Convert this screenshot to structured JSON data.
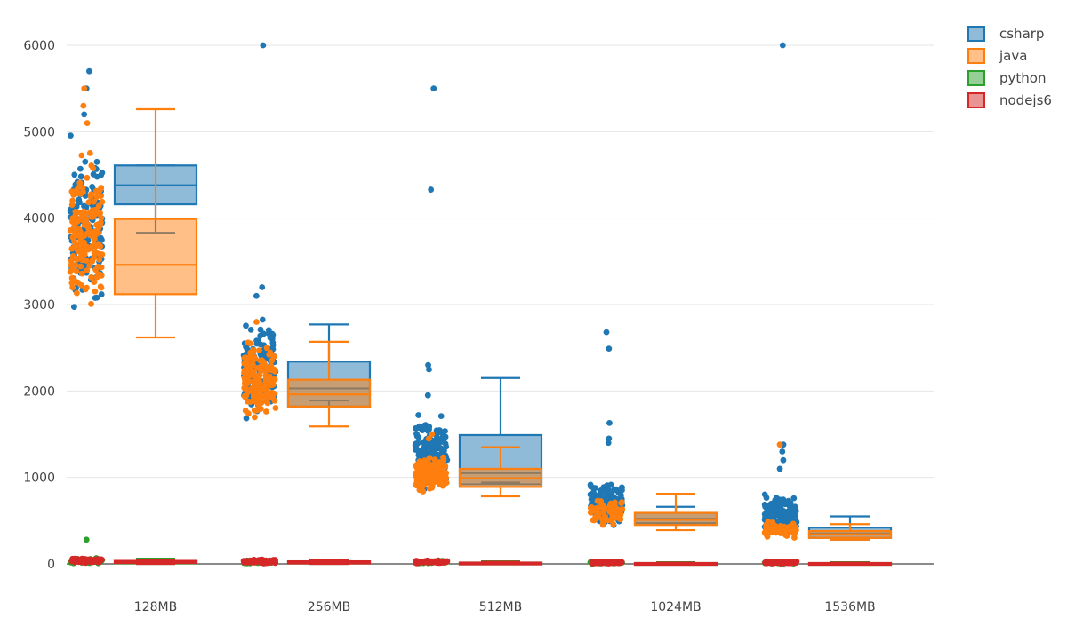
{
  "chart_data": {
    "type": "box",
    "title": "",
    "xlabel": "",
    "ylabel": "",
    "ylim": [
      -100,
      6200
    ],
    "yticks": [
      0,
      1000,
      2000,
      3000,
      4000,
      5000,
      6000
    ],
    "grid": true,
    "legend_position": "top-right",
    "boxpoints": "all",
    "categories": [
      "128MB",
      "256MB",
      "512MB",
      "1024MB",
      "1536MB"
    ],
    "series": [
      {
        "name": "csharp",
        "color": "#1f77b4",
        "boxes": [
          {
            "q1": 4160,
            "median": 4380,
            "q3": 4610,
            "lowerfence": 3830,
            "upperfence": 4610,
            "points_range": [
              2700,
              5050
            ],
            "outliers": [
              5200,
              5500,
              5700
            ]
          },
          {
            "q1": 1820,
            "median": 2030,
            "q3": 2340,
            "lowerfence": 1890,
            "upperfence": 2770,
            "points_range": [
              1650,
              2950
            ],
            "outliers": [
              3100,
              3200,
              6000
            ]
          },
          {
            "q1": 920,
            "median": 1050,
            "q3": 1490,
            "lowerfence": 940,
            "upperfence": 2150,
            "points_range": [
              800,
              1800
            ],
            "outliers": [
              1950,
              2250,
              2300,
              4330,
              5500
            ]
          },
          {
            "q1": 470,
            "median": 520,
            "q3": 590,
            "lowerfence": 460,
            "upperfence": 660,
            "points_range": [
              400,
              1000
            ],
            "outliers": [
              1400,
              1450,
              1630,
              2490,
              2680
            ]
          },
          {
            "q1": 300,
            "median": 350,
            "q3": 420,
            "lowerfence": 280,
            "upperfence": 550,
            "points_range": [
              260,
              850
            ],
            "outliers": [
              1100,
              1200,
              1300,
              1380,
              6000
            ]
          }
        ]
      },
      {
        "name": "java",
        "color": "#ff7f0e",
        "boxes": [
          {
            "q1": 3120,
            "median": 3460,
            "q3": 3990,
            "lowerfence": 2620,
            "upperfence": 5260,
            "points_range": [
              2650,
              4900
            ],
            "outliers": [
              5100,
              5300,
              5500
            ]
          },
          {
            "q1": 1820,
            "median": 1960,
            "q3": 2130,
            "lowerfence": 1590,
            "upperfence": 2570,
            "points_range": [
              1600,
              2650
            ],
            "outliers": [
              2800
            ]
          },
          {
            "q1": 890,
            "median": 990,
            "q3": 1100,
            "lowerfence": 780,
            "upperfence": 1350,
            "points_range": [
              780,
              1300
            ],
            "outliers": [
              1450,
              1500
            ]
          },
          {
            "q1": 450,
            "median": 510,
            "q3": 590,
            "lowerfence": 390,
            "upperfence": 810,
            "points_range": [
              400,
              800
            ],
            "outliers": []
          },
          {
            "q1": 300,
            "median": 340,
            "q3": 380,
            "lowerfence": 280,
            "upperfence": 460,
            "points_range": [
              270,
              520
            ],
            "outliers": [
              1380
            ]
          }
        ]
      },
      {
        "name": "python",
        "color": "#2ca02c",
        "boxes": [
          {
            "q1": 5,
            "median": 15,
            "q3": 30,
            "lowerfence": 0,
            "upperfence": 60,
            "points_range": [
              0,
              70
            ],
            "outliers": [
              280
            ]
          },
          {
            "q1": 5,
            "median": 10,
            "q3": 25,
            "lowerfence": 0,
            "upperfence": 45,
            "points_range": [
              0,
              50
            ],
            "outliers": []
          },
          {
            "q1": 2,
            "median": 8,
            "q3": 15,
            "lowerfence": 0,
            "upperfence": 30,
            "points_range": [
              0,
              40
            ],
            "outliers": []
          },
          {
            "q1": 2,
            "median": 5,
            "q3": 10,
            "lowerfence": 0,
            "upperfence": 20,
            "points_range": [
              0,
              30
            ],
            "outliers": []
          },
          {
            "q1": 2,
            "median": 5,
            "q3": 10,
            "lowerfence": 0,
            "upperfence": 20,
            "points_range": [
              0,
              30
            ],
            "outliers": []
          }
        ]
      },
      {
        "name": "nodejs6",
        "color": "#d62728",
        "boxes": [
          {
            "q1": 10,
            "median": 20,
            "q3": 35,
            "lowerfence": 0,
            "upperfence": 50,
            "points_range": [
              0,
              80
            ],
            "outliers": []
          },
          {
            "q1": 5,
            "median": 15,
            "q3": 30,
            "lowerfence": 0,
            "upperfence": 40,
            "points_range": [
              0,
              60
            ],
            "outliers": []
          },
          {
            "q1": 2,
            "median": 8,
            "q3": 15,
            "lowerfence": 0,
            "upperfence": 25,
            "points_range": [
              0,
              45
            ],
            "outliers": []
          },
          {
            "q1": 2,
            "median": 5,
            "q3": 10,
            "lowerfence": 0,
            "upperfence": 15,
            "points_range": [
              0,
              30
            ],
            "outliers": []
          },
          {
            "q1": 2,
            "median": 5,
            "q3": 10,
            "lowerfence": 0,
            "upperfence": 15,
            "points_range": [
              0,
              30
            ],
            "outliers": []
          }
        ]
      }
    ]
  }
}
